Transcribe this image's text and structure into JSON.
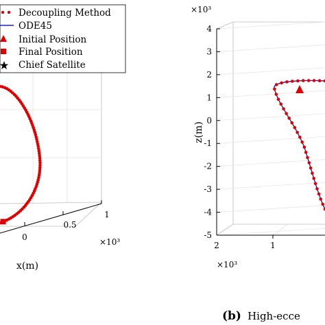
{
  "chart_data": [
    {
      "type": "line",
      "panel": "left",
      "legend": {
        "placement": "top-left",
        "entries": [
          {
            "label": "Decoupling Method",
            "marker": "dot",
            "color": "#e00000"
          },
          {
            "label": "ODE45",
            "marker": "line",
            "color": "#1f1fbf"
          },
          {
            "label": "Initial Position",
            "marker": "triangle",
            "color": "#e00000"
          },
          {
            "label": "Final Position",
            "marker": "square",
            "color": "#e00000"
          },
          {
            "label": "Chief Satellite",
            "marker": "star",
            "color": "#000000"
          }
        ]
      },
      "x_axis": {
        "label": "x(m)",
        "ticks": [
          "0",
          "0.5",
          "1"
        ],
        "exponent": "×10³"
      },
      "series": [
        {
          "name": "Decoupling Method",
          "color": "#e00000"
        },
        {
          "name": "ODE45",
          "color": "#1f1fbf"
        }
      ]
    },
    {
      "type": "line",
      "panel": "right",
      "z_axis": {
        "label": "z(m)",
        "ticks": [
          "4",
          "3",
          "2",
          "1",
          "0",
          "-1",
          "-2",
          "-3",
          "-4",
          "-5"
        ],
        "exponent": "×10³",
        "range": [
          -5,
          4
        ]
      },
      "x_axis": {
        "ticks": [
          "2",
          "1"
        ],
        "exponent": "×10³"
      },
      "series": [
        {
          "name": "Decoupling Method",
          "color": "#e00000"
        },
        {
          "name": "ODE45",
          "color": "#1f1fbf"
        }
      ],
      "markers": {
        "initial_position": {
          "color": "#e00000"
        }
      }
    }
  ],
  "caption": {
    "prefix": "(b)",
    "text": "High-ecce"
  }
}
